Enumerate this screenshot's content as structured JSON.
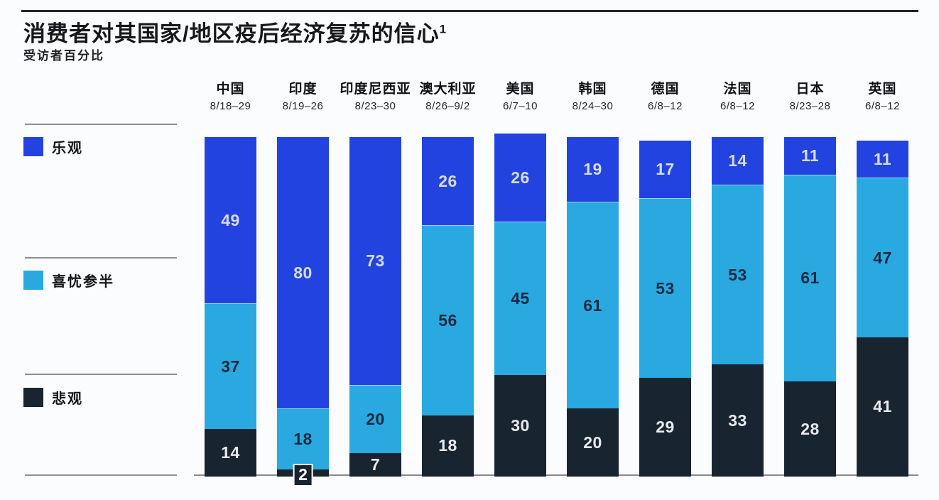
{
  "page": {
    "title": "消费者对其国家/地区疫后经济复苏的信心",
    "title_superscript": "1",
    "subtitle": "受访者百分比"
  },
  "legend": {
    "position": "left",
    "items": [
      {
        "label": "乐观",
        "color": "#2343e0"
      },
      {
        "label": "喜忧参半",
        "color": "#29a9e0"
      },
      {
        "label": "悲观",
        "color": "#192431"
      }
    ]
  },
  "chart_data": {
    "type": "bar",
    "stacked": true,
    "orientation": "vertical",
    "title": "消费者对其国家/地区疫后经济复苏的信心",
    "subtitle": "受访者百分比",
    "units": "% of respondents",
    "ylim": [
      0,
      100
    ],
    "grid": false,
    "legend_position": "left",
    "categories": [
      "中国",
      "印度",
      "印度尼西亚",
      "澳大利亚",
      "美国",
      "韩国",
      "德国",
      "法国",
      "日本",
      "英国"
    ],
    "category_dates": [
      "8/18–29",
      "8/19–26",
      "8/23–30",
      "8/26–9/2",
      "6/7–10",
      "8/24–30",
      "6/8–12",
      "6/8–12",
      "8/23–28",
      "6/8–12"
    ],
    "series": [
      {
        "name": "乐观",
        "color": "#2343e0",
        "label_color": "#d7dcf0",
        "values": [
          49,
          80,
          73,
          26,
          26,
          19,
          17,
          14,
          11,
          11
        ]
      },
      {
        "name": "喜忧参半",
        "color": "#29a9e0",
        "label_color": "#132a40",
        "values": [
          37,
          18,
          20,
          56,
          45,
          61,
          53,
          53,
          61,
          47
        ]
      },
      {
        "name": "悲观",
        "color": "#192431",
        "label_color": "#e8eaee",
        "values": [
          14,
          2,
          7,
          18,
          30,
          20,
          29,
          33,
          28,
          41
        ]
      }
    ]
  }
}
